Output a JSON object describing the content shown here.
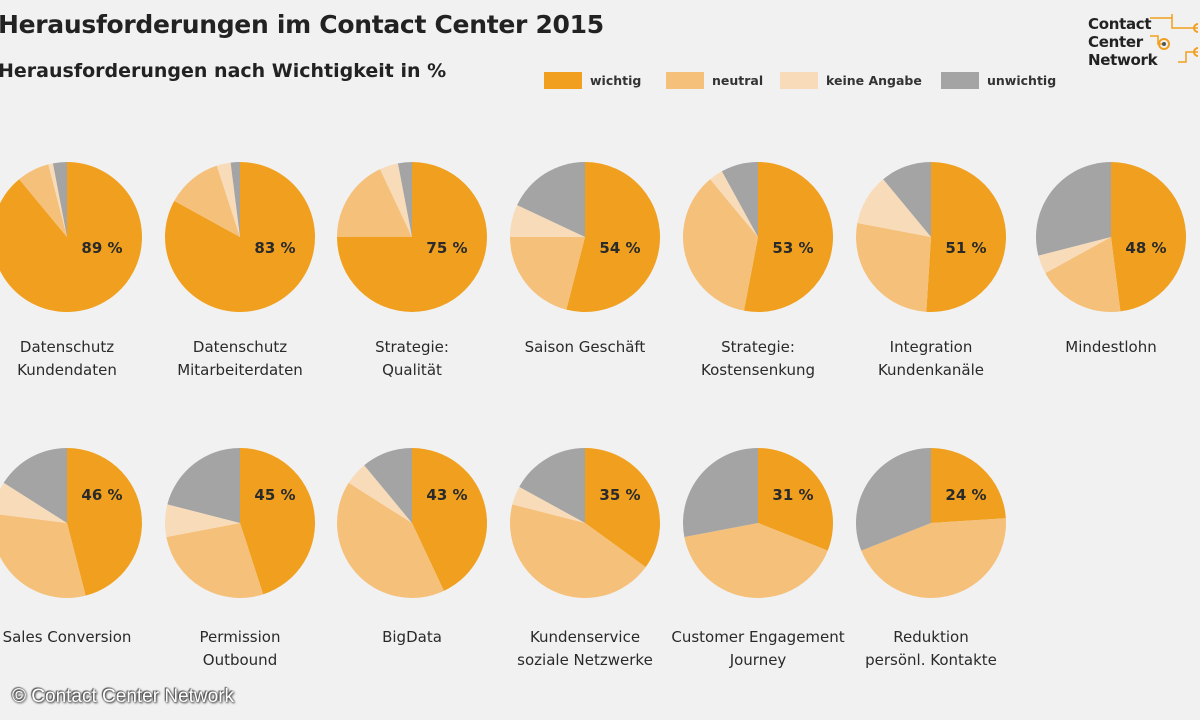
{
  "header": {
    "title": "Herausforderungen im Contact Center 2015",
    "subtitle": "Herausforderungen nach Wichtigkeit in %"
  },
  "logo": {
    "line1": "Contact",
    "line2": "Center",
    "line3": "Network"
  },
  "legend": [
    {
      "label": "wichtig",
      "color": "#f0a01e"
    },
    {
      "label": "neutral",
      "color": "#f5c07a"
    },
    {
      "label": "keine Angabe",
      "color": "#f8dcba"
    },
    {
      "label": "unwichtig",
      "color": "#a4a4a4"
    }
  ],
  "chart_data": {
    "type": "pie",
    "unit": "%",
    "series_names": [
      "wichtig",
      "neutral",
      "keine Angabe",
      "unwichtig"
    ],
    "pies": [
      {
        "label": [
          "Datenschutz",
          "Kundendaten"
        ],
        "value_label": "89 %",
        "values": [
          89,
          7,
          1,
          3
        ]
      },
      {
        "label": [
          "Datenschutz",
          "Mitarbeiterdaten"
        ],
        "value_label": "83 %",
        "values": [
          83,
          12,
          3,
          2
        ]
      },
      {
        "label": [
          "Strategie:",
          "Qualität"
        ],
        "value_label": "75 %",
        "values": [
          75,
          18,
          4,
          3
        ]
      },
      {
        "label": [
          "Saison Geschäft"
        ],
        "value_label": "54 %",
        "values": [
          54,
          21,
          7,
          18
        ]
      },
      {
        "label": [
          "Strategie:",
          "Kostensenkung"
        ],
        "value_label": "53 %",
        "values": [
          53,
          36,
          3,
          8
        ]
      },
      {
        "label": [
          "Integration",
          "Kundenkanäle"
        ],
        "value_label": "51 %",
        "values": [
          51,
          27,
          11,
          11
        ]
      },
      {
        "label": [
          "Mindestlohn"
        ],
        "value_label": "48 %",
        "values": [
          48,
          19,
          4,
          29
        ]
      },
      {
        "label": [
          "Sales Conversion"
        ],
        "value_label": "46 %",
        "values": [
          46,
          31,
          7,
          16
        ]
      },
      {
        "label": [
          "Permission",
          "Outbound"
        ],
        "value_label": "45 %",
        "values": [
          45,
          27,
          7,
          21
        ]
      },
      {
        "label": [
          "BigData"
        ],
        "value_label": "43 %",
        "values": [
          43,
          41,
          5,
          11
        ]
      },
      {
        "label": [
          "Kundenservice",
          "soziale Netzwerke"
        ],
        "value_label": "35 %",
        "values": [
          35,
          44,
          4,
          17
        ]
      },
      {
        "label": [
          "Customer Engagement",
          "Journey"
        ],
        "value_label": "31 %",
        "values": [
          31,
          41,
          0,
          28
        ]
      },
      {
        "label": [
          "Reduktion",
          "persönl. Kontakte"
        ],
        "value_label": "24 %",
        "values": [
          24,
          45,
          0,
          31
        ]
      }
    ]
  },
  "footer": {
    "copyright": "© Contact Center Network"
  }
}
